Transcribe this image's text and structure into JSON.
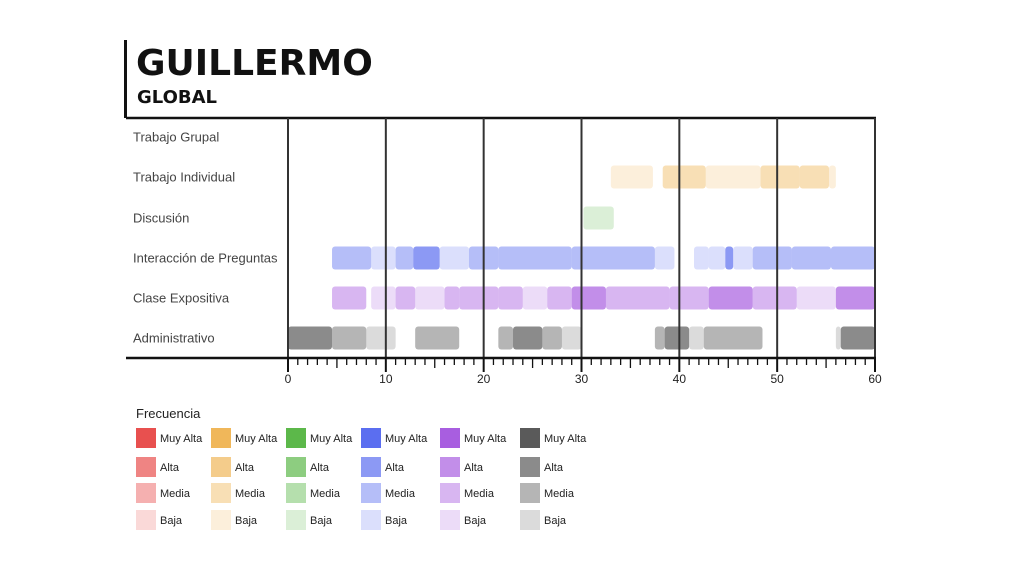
{
  "chart_data": {
    "type": "timeline",
    "title": "GUILLERMO",
    "subtitle": "GLOBAL",
    "x_ticks": [
      0,
      10,
      20,
      30,
      40,
      50,
      60
    ],
    "xlim": [
      0,
      60
    ],
    "vertical_gridlines": [
      0,
      10,
      20,
      30,
      40,
      50,
      60
    ],
    "rows": [
      {
        "name": "Trabajo Grupal",
        "color": "",
        "segments": []
      },
      {
        "name": "Trabajo Individual",
        "color": "#f0b75a",
        "segments": [
          {
            "start": 33,
            "end": 37.3,
            "level": "Baja"
          },
          {
            "start": 38.3,
            "end": 42.7,
            "level": "Media"
          },
          {
            "start": 42.7,
            "end": 48.3,
            "level": "Baja"
          },
          {
            "start": 48.3,
            "end": 52.3,
            "level": "Media"
          },
          {
            "start": 52.3,
            "end": 55.3,
            "level": "Media"
          },
          {
            "start": 55.3,
            "end": 56,
            "level": "Baja"
          }
        ]
      },
      {
        "name": "Discusión",
        "color": "#5cb84a",
        "segments": [
          {
            "start": 30.2,
            "end": 33.3,
            "level": "Baja"
          }
        ]
      },
      {
        "name": "Interacción de Preguntas",
        "color": "#5b6ef0",
        "segments": [
          {
            "start": 4.5,
            "end": 8.5,
            "level": "Media"
          },
          {
            "start": 8.5,
            "end": 11,
            "level": "Baja"
          },
          {
            "start": 11,
            "end": 12.8,
            "level": "Media"
          },
          {
            "start": 12.8,
            "end": 15.5,
            "level": "Alta"
          },
          {
            "start": 15.5,
            "end": 18.5,
            "level": "Baja"
          },
          {
            "start": 18.5,
            "end": 21.5,
            "level": "Media"
          },
          {
            "start": 21.5,
            "end": 29,
            "level": "Media"
          },
          {
            "start": 29,
            "end": 37.5,
            "level": "Media"
          },
          {
            "start": 37.5,
            "end": 39.5,
            "level": "Baja"
          },
          {
            "start": 41.5,
            "end": 43,
            "level": "Baja"
          },
          {
            "start": 43,
            "end": 44.7,
            "level": "Baja"
          },
          {
            "start": 44.7,
            "end": 45.5,
            "level": "Alta"
          },
          {
            "start": 45.5,
            "end": 47.5,
            "level": "Baja"
          },
          {
            "start": 47.5,
            "end": 51.5,
            "level": "Media"
          },
          {
            "start": 51.5,
            "end": 55.5,
            "level": "Media"
          },
          {
            "start": 55.5,
            "end": 60,
            "level": "Media"
          }
        ]
      },
      {
        "name": "Clase Expositiva",
        "color": "#a85ee0",
        "segments": [
          {
            "start": 4.5,
            "end": 8,
            "level": "Media"
          },
          {
            "start": 8.5,
            "end": 11,
            "level": "Baja"
          },
          {
            "start": 11,
            "end": 13,
            "level": "Media"
          },
          {
            "start": 13,
            "end": 16,
            "level": "Baja"
          },
          {
            "start": 16,
            "end": 17.5,
            "level": "Media"
          },
          {
            "start": 17.5,
            "end": 21.5,
            "level": "Media"
          },
          {
            "start": 21.5,
            "end": 24,
            "level": "Media"
          },
          {
            "start": 24,
            "end": 26.5,
            "level": "Baja"
          },
          {
            "start": 26.5,
            "end": 29,
            "level": "Media"
          },
          {
            "start": 29,
            "end": 32.5,
            "level": "Alta"
          },
          {
            "start": 32.5,
            "end": 39,
            "level": "Media"
          },
          {
            "start": 39,
            "end": 43,
            "level": "Media"
          },
          {
            "start": 43,
            "end": 47.5,
            "level": "Alta"
          },
          {
            "start": 47.5,
            "end": 52,
            "level": "Media"
          },
          {
            "start": 52,
            "end": 56,
            "level": "Baja"
          },
          {
            "start": 56,
            "end": 60,
            "level": "Alta"
          }
        ]
      },
      {
        "name": "Administrativo",
        "color": "#5a5a5a",
        "segments": [
          {
            "start": 0,
            "end": 4.5,
            "level": "Alta"
          },
          {
            "start": 4.5,
            "end": 8,
            "level": "Media"
          },
          {
            "start": 8,
            "end": 11,
            "level": "Baja"
          },
          {
            "start": 13,
            "end": 17.5,
            "level": "Media"
          },
          {
            "start": 21.5,
            "end": 23,
            "level": "Media"
          },
          {
            "start": 23,
            "end": 26,
            "level": "Alta"
          },
          {
            "start": 26,
            "end": 28,
            "level": "Media"
          },
          {
            "start": 28,
            "end": 30,
            "level": "Baja"
          },
          {
            "start": 37.5,
            "end": 38.5,
            "level": "Media"
          },
          {
            "start": 38.5,
            "end": 41,
            "level": "Alta"
          },
          {
            "start": 41,
            "end": 42.5,
            "level": "Baja"
          },
          {
            "start": 42.5,
            "end": 48.5,
            "level": "Media"
          },
          {
            "start": 56,
            "end": 56.5,
            "level": "Baja"
          },
          {
            "start": 56.5,
            "end": 60,
            "level": "Alta"
          }
        ]
      }
    ],
    "legend": {
      "title": "Frecuencia",
      "levels": [
        "Muy Alta",
        "Alta",
        "Media",
        "Baja"
      ],
      "columns": [
        {
          "color": "#e8504f"
        },
        {
          "color": "#f0b75a"
        },
        {
          "color": "#5cb84a"
        },
        {
          "color": "#5b6ef0"
        },
        {
          "color": "#a85ee0"
        },
        {
          "color": "#5a5a5a"
        }
      ]
    },
    "level_opacity": {
      "Muy Alta": 1.0,
      "Alta": 0.7,
      "Media": 0.45,
      "Baja": 0.22
    }
  }
}
